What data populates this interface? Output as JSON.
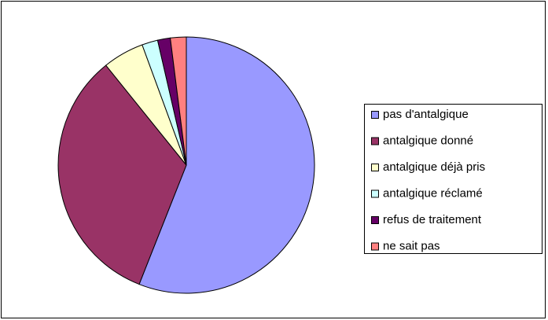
{
  "chart_data": {
    "type": "pie",
    "categories": [
      "pas d'antalgique",
      "antalgique donné",
      "antalgique déjà pris",
      "antalgique réclamé",
      "refus de traitement",
      "ne sait pas"
    ],
    "values": [
      56,
      33.2,
      5.2,
      2,
      1.6,
      2
    ],
    "colors": [
      "#9999ff",
      "#993366",
      "#ffffcc",
      "#ccffff",
      "#660066",
      "#ff8080"
    ],
    "legend": "right"
  }
}
